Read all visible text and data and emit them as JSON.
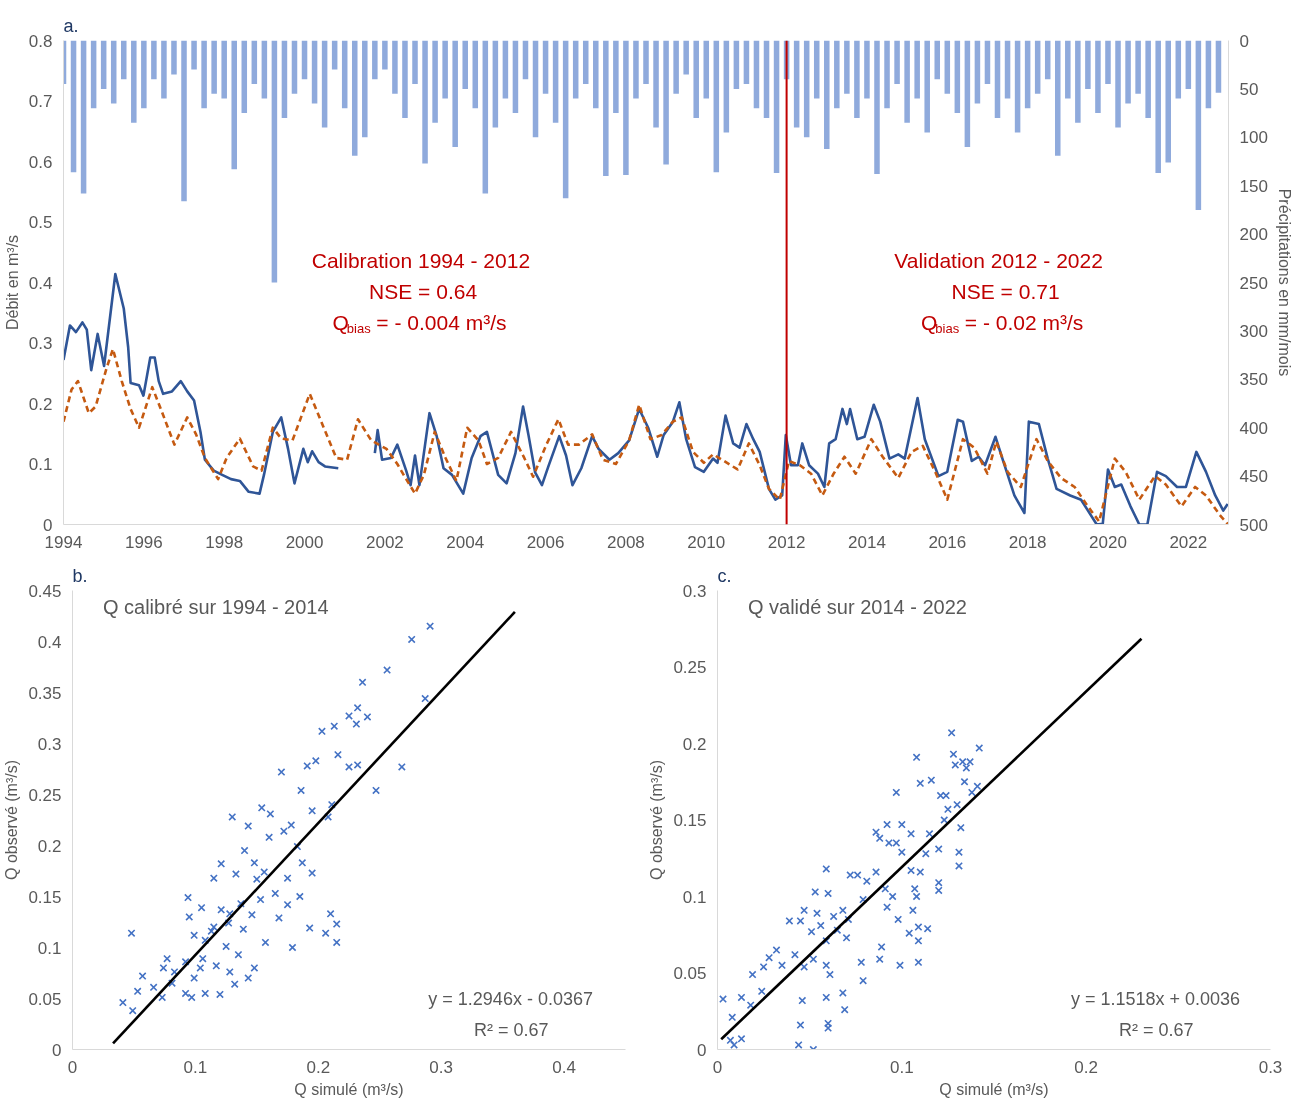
{
  "chart_data": [
    {
      "type": "line",
      "ylabel": "Débit en m³/s",
      "y2label": "Précipitations en mm/mois",
      "xlim": [
        1994,
        2023
      ],
      "xticks": [
        1994,
        1996,
        1998,
        2000,
        2002,
        2004,
        2006,
        2008,
        2010,
        2012,
        2014,
        2016,
        2018,
        2020,
        2022
      ],
      "ylim": [
        0,
        0.8
      ],
      "yticks": [
        0,
        0.1,
        0.2,
        0.3,
        0.4,
        0.5,
        0.6,
        0.7,
        0.8
      ],
      "y2lim": [
        500,
        0
      ],
      "y2ticks": [
        0,
        50,
        100,
        150,
        200,
        250,
        300,
        350,
        400,
        450,
        500
      ],
      "annotations": [
        "a.",
        "Calibration 1994 - 2012\nNSE = 0.64\nQ$_{bias}$ = - 0.004 m³/s",
        "Validation  2012 - 2022\nNSE = 0.71\nQ$_{bias}$ = - 0.02 m³/s"
      ],
      "ref_lines": [
        {
          "axis": "x",
          "value": 2012,
          "color": "#c00000"
        }
      ],
      "series": [
        {
          "type": "bar",
          "axis": "y2",
          "color": "#8faadc",
          "x": [
            1994.0,
            1994.25,
            1994.5,
            1994.75,
            1995.0,
            1995.25,
            1995.5,
            1995.75,
            1996.0,
            1996.25,
            1996.5,
            1996.75,
            1997.0,
            1997.25,
            1997.5,
            1997.75,
            1998.0,
            1998.25,
            1998.5,
            1998.75,
            1999.0,
            1999.25,
            1999.5,
            1999.75,
            2000.0,
            2000.25,
            2000.5,
            2000.75,
            2001.0,
            2001.25,
            2001.5,
            2001.75,
            2002.0,
            2002.25,
            2002.5,
            2002.75,
            2003.0,
            2003.25,
            2003.5,
            2003.75,
            2004.0,
            2004.25,
            2004.5,
            2004.75,
            2005.0,
            2005.25,
            2005.5,
            2005.75,
            2006.0,
            2006.25,
            2006.5,
            2006.75,
            2007.0,
            2007.25,
            2007.5,
            2007.75,
            2008.0,
            2008.25,
            2008.5,
            2008.75,
            2009.0,
            2009.25,
            2009.5,
            2009.75,
            2010.0,
            2010.25,
            2010.5,
            2010.75,
            2011.0,
            2011.25,
            2011.5,
            2011.75,
            2012.0,
            2012.25,
            2012.5,
            2012.75,
            2013.0,
            2013.25,
            2013.5,
            2013.75,
            2014.0,
            2014.25,
            2014.5,
            2014.75,
            2015.0,
            2015.25,
            2015.5,
            2015.75,
            2016.0,
            2016.25,
            2016.5,
            2016.75,
            2017.0,
            2017.25,
            2017.5,
            2017.75,
            2018.0,
            2018.25,
            2018.5,
            2018.75,
            2019.0,
            2019.25,
            2019.5,
            2019.75,
            2020.0,
            2020.25,
            2020.5,
            2020.75,
            2021.0,
            2021.25,
            2021.5,
            2021.75,
            2022.0,
            2022.25,
            2022.5,
            2022.75
          ],
          "values": [
            45,
            136,
            158,
            70,
            50,
            65,
            40,
            85,
            70,
            40,
            60,
            35,
            166,
            30,
            70,
            55,
            60,
            133,
            75,
            45,
            60,
            250,
            80,
            55,
            40,
            65,
            90,
            30,
            70,
            119,
            100,
            40,
            30,
            55,
            80,
            45,
            127,
            85,
            60,
            110,
            50,
            70,
            158,
            90,
            60,
            75,
            40,
            100,
            55,
            85,
            163,
            60,
            45,
            70,
            140,
            75,
            139,
            60,
            45,
            90,
            128,
            55,
            35,
            80,
            60,
            136,
            95,
            50,
            45,
            70,
            80,
            137,
            40,
            90,
            100,
            60,
            112,
            70,
            55,
            80,
            60,
            138,
            70,
            45,
            85,
            60,
            95,
            40,
            55,
            75,
            110,
            65,
            45,
            80,
            60,
            95,
            70,
            55,
            40,
            119,
            60,
            85,
            50,
            75,
            45,
            90,
            65,
            55,
            80,
            137,
            126,
            60,
            50,
            175,
            70,
            54
          ]
        },
        {
          "color": "#2f5597",
          "line_style": "solid",
          "x": [
            1994.0,
            1994.16,
            1994.31,
            1994.47,
            1994.58,
            1994.69,
            1994.85,
            1995.01,
            1995.29,
            1995.5,
            1995.61,
            1995.67,
            1995.88,
            1995.99,
            1996.16,
            1996.27,
            1996.37,
            1996.48,
            1996.7,
            1996.92,
            1997.08,
            1997.25,
            1997.41,
            1997.52,
            1997.74,
            1997.95,
            1998.17,
            1998.39,
            1998.61,
            1998.88,
            1998.99,
            1999.21,
            1999.42,
            1999.59,
            1999.75,
            1999.97,
            2000.08,
            2000.19,
            2000.35,
            2000.51,
            2000.84,
            2001.3,
            2001.75,
            2001.82,
            2001.93,
            2002.15,
            2002.31,
            2002.53,
            2002.64,
            2002.75,
            2002.86,
            2003.11,
            2003.29,
            2003.46,
            2003.67,
            2003.95,
            2004.16,
            2004.38,
            2004.54,
            2004.82,
            2005.03,
            2005.25,
            2005.44,
            2005.58,
            2005.74,
            2005.91,
            2006.07,
            2006.34,
            2006.51,
            2006.67,
            2006.89,
            2007.16,
            2007.32,
            2007.59,
            2007.81,
            2008.08,
            2008.33,
            2008.56,
            2008.78,
            2008.94,
            2009.17,
            2009.33,
            2009.5,
            2009.72,
            2009.94,
            2010.17,
            2010.28,
            2010.48,
            2010.67,
            2010.83,
            2011.0,
            2011.17,
            2011.33,
            2011.56,
            2011.72,
            2011.89,
            2011.98,
            2012.11,
            2012.28,
            2012.39,
            2012.56,
            2012.78,
            2012.94,
            2013.06,
            2013.22,
            2013.39,
            2013.5,
            2013.58,
            2013.76,
            2013.94,
            2014.17,
            2014.33,
            2014.56,
            2014.78,
            2014.94,
            2015.26,
            2015.44,
            2015.78,
            2016.0,
            2016.26,
            2016.39,
            2016.61,
            2016.78,
            2016.94,
            2017.2,
            2017.39,
            2017.67,
            2017.92,
            2018.03,
            2018.28,
            2018.5,
            2018.72,
            2019.06,
            2019.33,
            2019.72,
            2019.87,
            2020.0,
            2020.17,
            2020.33,
            2020.56,
            2020.78,
            2020.98,
            2021.22,
            2021.44,
            2021.72,
            2021.94,
            2022.2,
            2022.44,
            2022.67,
            2022.87,
            2022.98
          ],
          "values": [
            0.272,
            0.329,
            0.318,
            0.334,
            0.322,
            0.255,
            0.315,
            0.262,
            0.414,
            0.357,
            0.293,
            0.234,
            0.23,
            0.213,
            0.276,
            0.276,
            0.237,
            0.216,
            0.22,
            0.237,
            0.22,
            0.205,
            0.153,
            0.107,
            0.089,
            0.082,
            0.075,
            0.072,
            0.054,
            0.051,
            0.082,
            0.153,
            0.177,
            0.125,
            0.068,
            0.125,
            0.103,
            0.121,
            0.103,
            0.096,
            0.093,
            null,
            0.118,
            0.156,
            0.107,
            0.11,
            0.132,
            0.089,
            0.065,
            0.114,
            0.065,
            0.184,
            0.146,
            0.093,
            0.082,
            0.051,
            0.11,
            0.146,
            0.153,
            0.082,
            0.068,
            0.118,
            0.195,
            0.146,
            0.086,
            0.065,
            0.096,
            0.146,
            0.114,
            0.065,
            0.093,
            0.146,
            0.125,
            0.107,
            0.118,
            0.139,
            0.191,
            0.159,
            0.112,
            0.148,
            0.17,
            0.202,
            0.141,
            0.095,
            0.087,
            0.109,
            0.102,
            0.18,
            0.134,
            0.127,
            0.166,
            0.141,
            0.12,
            0.059,
            0.041,
            0.048,
            0.148,
            0.098,
            0.098,
            0.134,
            0.098,
            0.084,
            0.062,
            0.134,
            0.141,
            0.191,
            0.166,
            0.191,
            0.141,
            0.145,
            0.198,
            0.17,
            0.109,
            0.116,
            0.109,
            0.209,
            0.141,
            0.08,
            0.087,
            0.173,
            0.17,
            0.105,
            0.112,
            0.098,
            0.145,
            0.105,
            0.048,
            0.019,
            0.17,
            0.166,
            0.109,
            0.059,
            0.048,
            0.041,
            0,
            0.001,
            0.091,
            0.062,
            0.066,
            0.03,
            0,
            0,
            0.087,
            0.08,
            0.062,
            0.062,
            0.12,
            0.087,
            0.048,
            0.023,
            0.034
          ]
        },
        {
          "color": "#c55a11",
          "line_style": "dashed",
          "x": [
            1994.0,
            1994.2,
            1994.36,
            1994.63,
            1994.8,
            1995.07,
            1995.23,
            1995.45,
            1995.67,
            1995.88,
            1996.21,
            1996.48,
            1996.76,
            1997.08,
            1997.3,
            1997.52,
            1997.85,
            1998.06,
            1998.39,
            1998.72,
            1998.93,
            1999.21,
            1999.42,
            1999.7,
            2000.13,
            2000.46,
            2000.79,
            2001.06,
            2001.33,
            2001.66,
            2002.04,
            2002.31,
            2002.53,
            2002.75,
            2002.97,
            2003.24,
            2003.51,
            2003.78,
            2004.05,
            2004.33,
            2004.54,
            2004.82,
            2005.14,
            2005.47,
            2005.69,
            2006.02,
            2006.32,
            2006.56,
            2006.83,
            2007.16,
            2007.43,
            2007.75,
            2008.08,
            2008.33,
            2008.61,
            2008.89,
            2009.17,
            2009.39,
            2009.67,
            2009.94,
            2010.17,
            2010.44,
            2010.78,
            2011.06,
            2011.33,
            2011.56,
            2011.83,
            2012.06,
            2012.33,
            2012.61,
            2012.89,
            2013.17,
            2013.44,
            2013.72,
            2014.11,
            2014.39,
            2014.78,
            2015.11,
            2015.39,
            2015.72,
            2016.0,
            2016.39,
            2016.67,
            2017.0,
            2017.22,
            2017.5,
            2017.83,
            2018.22,
            2018.5,
            2018.83,
            2019.17,
            2019.5,
            2019.78,
            2020.17,
            2020.44,
            2020.78,
            2021.17,
            2021.44,
            2021.83,
            2022.17,
            2022.44,
            2022.78,
            2022.98
          ],
          "values": [
            0.17,
            0.223,
            0.237,
            0.184,
            0.195,
            0.258,
            0.29,
            0.237,
            0.191,
            0.16,
            0.227,
            0.181,
            0.132,
            0.177,
            0.149,
            0.11,
            0.075,
            0.11,
            0.142,
            0.096,
            0.089,
            0.16,
            0.142,
            0.139,
            0.216,
            0.163,
            0.11,
            0.107,
            0.174,
            0.139,
            0.125,
            0.1,
            0.075,
            0.051,
            0.082,
            0.153,
            0.11,
            0.072,
            0.16,
            0.139,
            0.1,
            0.11,
            0.153,
            0.11,
            0.079,
            0.132,
            0.174,
            0.132,
            0.132,
            0.149,
            0.107,
            0.1,
            0.139,
            0.198,
            0.141,
            0.148,
            0.17,
            0.177,
            0.12,
            0.102,
            0.116,
            0.105,
            0.091,
            0.134,
            0.098,
            0.059,
            0.041,
            0.105,
            0.098,
            0.084,
            0.048,
            0.084,
            0.112,
            0.084,
            0.141,
            0.112,
            0.077,
            0.12,
            0.13,
            0.084,
            0.041,
            0.141,
            0.127,
            0.084,
            0.137,
            0.087,
            0.062,
            0.141,
            0.105,
            0.077,
            0.062,
            0.03,
            0.005,
            0.109,
            0.087,
            0.041,
            0.08,
            0.066,
            0.03,
            0.062,
            0.048,
            0.016,
            0.001
          ]
        }
      ]
    },
    {
      "type": "scatter",
      "title": "Q calibré sur 1994 - 2014",
      "xlabel": "Q simulé (m³/s)",
      "ylabel": "Q observé (m³/s)",
      "xlim": [
        0,
        0.45
      ],
      "xticks": [
        0,
        0.1,
        0.2,
        0.3,
        0.4
      ],
      "ylim": [
        0,
        0.45
      ],
      "yticks": [
        0,
        0.05,
        0.1,
        0.15,
        0.2,
        0.25,
        0.3,
        0.35,
        0.4,
        0.45
      ],
      "annotations": [
        "b.",
        "y = 1.2946x - 0.0367\nR² = 0.67"
      ],
      "series": [
        {
          "marker": "cross",
          "color": "#4472c4",
          "x": [
            0.291,
            0.276,
            0.256,
            0.236,
            0.287,
            0.232,
            0.225,
            0.24,
            0.231,
            0.213,
            0.203,
            0.216,
            0.198,
            0.191,
            0.225,
            0.232,
            0.268,
            0.17,
            0.247,
            0.186,
            0.211,
            0.195,
            0.208,
            0.154,
            0.161,
            0.13,
            0.143,
            0.178,
            0.172,
            0.16,
            0.183,
            0.14,
            0.121,
            0.148,
            0.187,
            0.195,
            0.115,
            0.133,
            0.156,
            0.175,
            0.15,
            0.094,
            0.185,
            0.165,
            0.153,
            0.137,
            0.175,
            0.105,
            0.121,
            0.095,
            0.146,
            0.168,
            0.127,
            0.115,
            0.21,
            0.215,
            0.193,
            0.048,
            0.139,
            0.206,
            0.099,
            0.108,
            0.157,
            0.215,
            0.125,
            0.179,
            0.135,
            0.106,
            0.077,
            0.092,
            0.117,
            0.104,
            0.148,
            0.074,
            0.128,
            0.083,
            0.143,
            0.099,
            0.057,
            0.132,
            0.066,
            0.053,
            0.092,
            0.108,
            0.12,
            0.073,
            0.097,
            0.041,
            0.049,
            0.081,
            0.113,
            0.128
          ],
          "values": [
            0.415,
            0.402,
            0.372,
            0.36,
            0.344,
            0.335,
            0.327,
            0.326,
            0.319,
            0.317,
            0.312,
            0.289,
            0.283,
            0.278,
            0.277,
            0.279,
            0.277,
            0.272,
            0.254,
            0.254,
            0.24,
            0.234,
            0.228,
            0.237,
            0.231,
            0.228,
            0.219,
            0.22,
            0.214,
            0.208,
            0.199,
            0.195,
            0.182,
            0.183,
            0.183,
            0.173,
            0.168,
            0.172,
            0.174,
            0.168,
            0.167,
            0.149,
            0.15,
            0.153,
            0.147,
            0.143,
            0.142,
            0.139,
            0.137,
            0.13,
            0.132,
            0.129,
            0.124,
            0.12,
            0.133,
            0.123,
            0.119,
            0.114,
            0.118,
            0.114,
            0.112,
            0.107,
            0.105,
            0.105,
            0.101,
            0.1,
            0.093,
            0.089,
            0.089,
            0.086,
            0.082,
            0.08,
            0.08,
            0.08,
            0.076,
            0.076,
            0.07,
            0.07,
            0.072,
            0.064,
            0.061,
            0.057,
            0.055,
            0.055,
            0.054,
            0.051,
            0.051,
            0.046,
            0.038,
            0.065,
            0.116,
            0.133
          ]
        },
        {
          "type": "line",
          "color": "#000000",
          "line_style": "solid",
          "x": [
            0.033,
            0.36
          ],
          "values": [
            0.006,
            0.429
          ]
        }
      ]
    },
    {
      "type": "scatter",
      "title": "Q validé sur 2014 - 2022",
      "xlabel": "Q simulé (m³/s)",
      "ylabel": "Q observé (m³/s)",
      "xlim": [
        0,
        0.3
      ],
      "xticks": [
        0,
        0.1,
        0.2,
        0.3
      ],
      "ylim": [
        0,
        0.3
      ],
      "yticks": [
        0,
        0.05,
        0.1,
        0.15,
        0.2,
        0.25,
        0.3
      ],
      "annotations": [
        "c.",
        "y = 1.1518x + 0.0036\nR² = 0.67"
      ],
      "series": [
        {
          "marker": "cross",
          "color": "#4472c4",
          "x": [
            0.127,
            0.142,
            0.108,
            0.128,
            0.133,
            0.137,
            0.129,
            0.135,
            0.097,
            0.11,
            0.116,
            0.121,
            0.124,
            0.134,
            0.141,
            0.138,
            0.125,
            0.13,
            0.123,
            0.132,
            0.092,
            0.086,
            0.088,
            0.1,
            0.105,
            0.115,
            0.093,
            0.097,
            0.1,
            0.12,
            0.113,
            0.131,
            0.131,
            0.059,
            0.072,
            0.076,
            0.086,
            0.105,
            0.11,
            0.081,
            0.091,
            0.107,
            0.12,
            0.12,
            0.053,
            0.06,
            0.095,
            0.079,
            0.108,
            0.047,
            0.054,
            0.068,
            0.039,
            0.092,
            0.106,
            0.098,
            0.045,
            0.063,
            0.071,
            0.056,
            0.109,
            0.114,
            0.065,
            0.051,
            0.07,
            0.059,
            0.104,
            0.109,
            0.032,
            0.042,
            0.028,
            0.035,
            0.052,
            0.047,
            0.025,
            0.089,
            0.088,
            0.078,
            0.059,
            0.099,
            0.109,
            0.061,
            0.019,
            0.079,
            0.024,
            0.068,
            0.013,
            0.003,
            0.046,
            0.059,
            0.018,
            0.069,
            0.008,
            0.045,
            0.06,
            0.06,
            0.013,
            0.007,
            0.009,
            0.044,
            0.052
          ],
          "values": [
            0.207,
            0.197,
            0.191,
            0.193,
            0.188,
            0.188,
            0.186,
            0.184,
            0.168,
            0.174,
            0.176,
            0.166,
            0.166,
            0.175,
            0.172,
            0.168,
            0.157,
            0.16,
            0.15,
            0.145,
            0.147,
            0.142,
            0.138,
            0.147,
            0.141,
            0.141,
            0.135,
            0.135,
            0.129,
            0.131,
            0.128,
            0.129,
            0.12,
            0.118,
            0.114,
            0.114,
            0.116,
            0.117,
            0.116,
            0.11,
            0.105,
            0.105,
            0.109,
            0.104,
            0.103,
            0.102,
            0.1,
            0.098,
            0.1,
            0.091,
            0.089,
            0.091,
            0.084,
            0.093,
            0.091,
            0.085,
            0.084,
            0.087,
            0.085,
            0.081,
            0.08,
            0.079,
            0.078,
            0.077,
            0.073,
            0.071,
            0.076,
            0.071,
            0.065,
            0.062,
            0.06,
            0.055,
            0.059,
            0.054,
            0.054,
            0.067,
            0.059,
            0.057,
            0.055,
            0.055,
            0.057,
            0.049,
            0.049,
            0.045,
            0.038,
            0.037,
            0.034,
            0.033,
            0.032,
            0.034,
            0.029,
            0.026,
            0.021,
            0.016,
            0.017,
            0.014,
            0.007,
            0.006,
            0.003,
            0.003,
            0.0
          ]
        },
        {
          "type": "line",
          "color": "#000000",
          "line_style": "solid",
          "x": [
            0.002,
            0.23
          ],
          "values": [
            0.0067,
            0.2685
          ]
        }
      ]
    }
  ]
}
